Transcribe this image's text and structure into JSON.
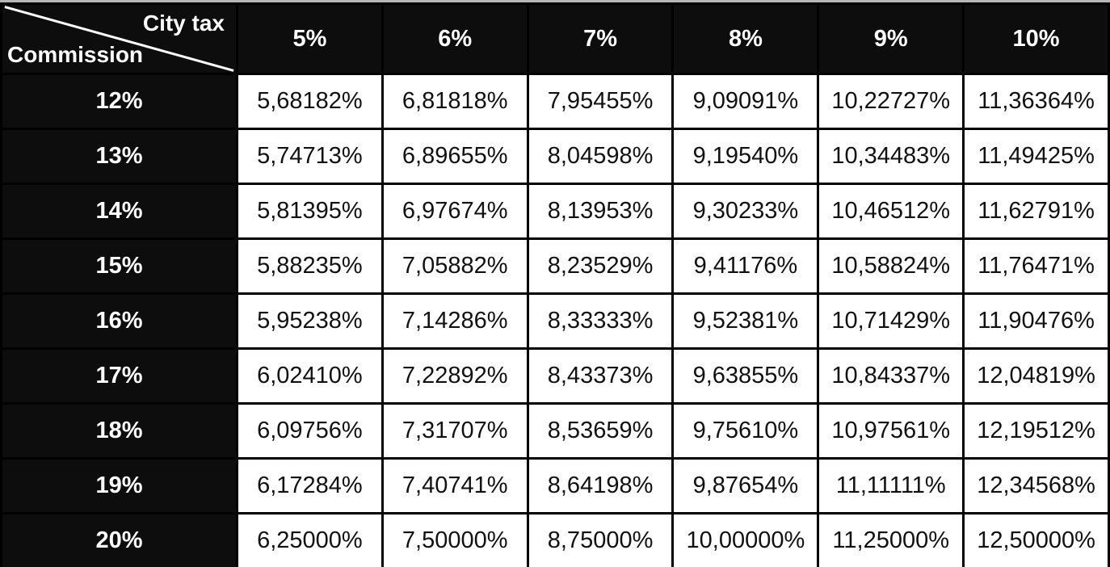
{
  "table": {
    "corner": {
      "top_label": "City tax",
      "bottom_label": "Commission"
    },
    "col_headers": [
      "5%",
      "6%",
      "7%",
      "8%",
      "9%",
      "10%"
    ],
    "rows": [
      {
        "commission": "12%",
        "values": [
          "5,68182%",
          "6,81818%",
          "7,95455%",
          "9,09091%",
          "10,22727%",
          "11,36364%"
        ]
      },
      {
        "commission": "13%",
        "values": [
          "5,74713%",
          "6,89655%",
          "8,04598%",
          "9,19540%",
          "10,34483%",
          "11,49425%"
        ]
      },
      {
        "commission": "14%",
        "values": [
          "5,81395%",
          "6,97674%",
          "8,13953%",
          "9,30233%",
          "10,46512%",
          "11,62791%"
        ]
      },
      {
        "commission": "15%",
        "values": [
          "5,88235%",
          "7,05882%",
          "8,23529%",
          "9,41176%",
          "10,58824%",
          "11,76471%"
        ]
      },
      {
        "commission": "16%",
        "values": [
          "5,95238%",
          "7,14286%",
          "8,33333%",
          "9,52381%",
          "10,71429%",
          "11,90476%"
        ]
      },
      {
        "commission": "17%",
        "values": [
          "6,02410%",
          "7,22892%",
          "8,43373%",
          "9,63855%",
          "10,84337%",
          "12,04819%"
        ]
      },
      {
        "commission": "18%",
        "values": [
          "6,09756%",
          "7,31707%",
          "8,53659%",
          "9,75610%",
          "10,97561%",
          "12,19512%"
        ]
      },
      {
        "commission": "19%",
        "values": [
          "6,17284%",
          "7,40741%",
          "8,64198%",
          "9,87654%",
          "11,11111%",
          "12,34568%"
        ]
      },
      {
        "commission": "20%",
        "values": [
          "6,25000%",
          "7,50000%",
          "8,75000%",
          "10,00000%",
          "11,25000%",
          "12,50000%"
        ]
      }
    ]
  },
  "colors": {
    "header_bg": "#0d0d0d",
    "header_text": "#ffffff",
    "cell_bg": "#ffffff",
    "cell_text": "#111111",
    "border": "#000000",
    "diagonal_line": "#ffffff",
    "top_strip": "#b7b7b7"
  }
}
